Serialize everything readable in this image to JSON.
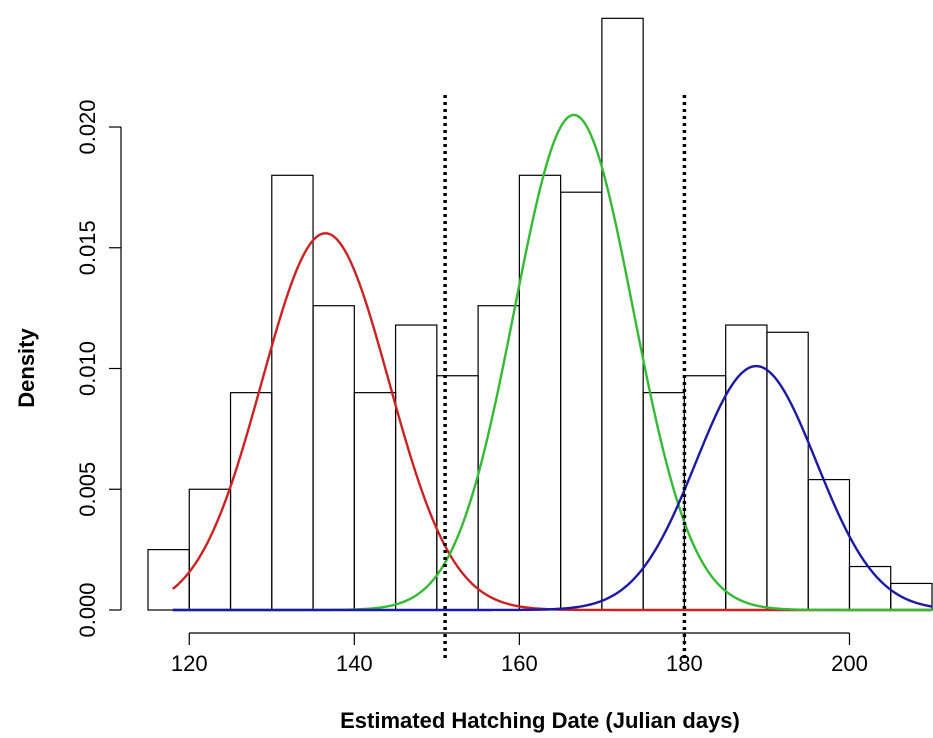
{
  "chart_data": {
    "type": "bar",
    "title": "",
    "xlabel": "Estimated Hatching Date (Julian days)",
    "ylabel": "Density",
    "xlim": [
      115,
      210
    ],
    "ylim": [
      0,
      0.0205
    ],
    "x_ticks": [
      120,
      140,
      160,
      180,
      200
    ],
    "x_tick_labels": [
      "120",
      "140",
      "160",
      "180",
      "200"
    ],
    "y_ticks": [
      0,
      0.005,
      0.01,
      0.015,
      0.02
    ],
    "y_tick_labels": [
      "0.000",
      "0.005",
      "0.010",
      "0.015",
      "0.020"
    ],
    "grid": false,
    "histogram": {
      "bin_width": 5,
      "bins": [
        {
          "x0": 115,
          "x1": 120,
          "density": 0.0025
        },
        {
          "x0": 120,
          "x1": 125,
          "density": 0.005
        },
        {
          "x0": 125,
          "x1": 130,
          "density": 0.009
        },
        {
          "x0": 130,
          "x1": 135,
          "density": 0.018
        },
        {
          "x0": 135,
          "x1": 140,
          "density": 0.0126
        },
        {
          "x0": 140,
          "x1": 145,
          "density": 0.009
        },
        {
          "x0": 145,
          "x1": 150,
          "density": 0.0118
        },
        {
          "x0": 150,
          "x1": 155,
          "density": 0.0097
        },
        {
          "x0": 155,
          "x1": 160,
          "density": 0.0126
        },
        {
          "x0": 160,
          "x1": 165,
          "density": 0.018
        },
        {
          "x0": 165,
          "x1": 170,
          "density": 0.0173
        },
        {
          "x0": 170,
          "x1": 175,
          "density": 0.0245
        },
        {
          "x0": 175,
          "x1": 180,
          "density": 0.009
        },
        {
          "x0": 180,
          "x1": 185,
          "density": 0.0097
        },
        {
          "x0": 185,
          "x1": 190,
          "density": 0.0118
        },
        {
          "x0": 190,
          "x1": 195,
          "density": 0.0115
        },
        {
          "x0": 195,
          "x1": 200,
          "density": 0.0054
        },
        {
          "x0": 200,
          "x1": 205,
          "density": 0.0018
        },
        {
          "x0": 205,
          "x1": 210,
          "density": 0.0011
        }
      ]
    },
    "curves": [
      {
        "color": "#cc2222",
        "type": "normal",
        "mean": 136.5,
        "sd": 7.7,
        "scale": 0.0156,
        "x_range": [
          118,
          210
        ]
      },
      {
        "color": "#33bb33",
        "type": "normal",
        "mean": 166.6,
        "sd": 7.2,
        "scale": 0.0205,
        "x_range": [
          118,
          210
        ]
      },
      {
        "color": "#1a1aa6",
        "type": "normal",
        "mean": 188.7,
        "sd": 7.3,
        "scale": 0.0101,
        "x_range": [
          118,
          210
        ]
      }
    ],
    "vertical_lines": [
      {
        "x": 151,
        "style": "dotted",
        "color": "#000000"
      },
      {
        "x": 180,
        "style": "dotted",
        "color": "#000000"
      }
    ]
  }
}
